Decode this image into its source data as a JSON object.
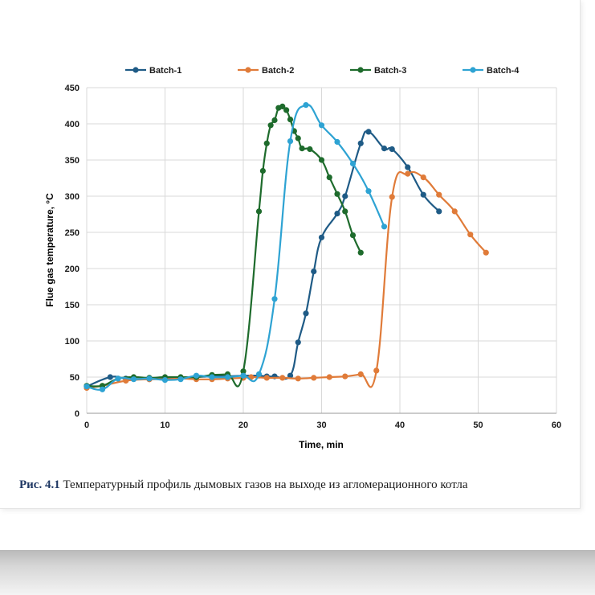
{
  "chart_data": {
    "type": "line",
    "title": "",
    "xlabel": "Time, min",
    "ylabel": "Flue gas temperature, °C",
    "xlim": [
      0,
      60
    ],
    "ylim": [
      0,
      450
    ],
    "xticks": [
      0,
      10,
      20,
      30,
      40,
      50,
      60
    ],
    "yticks": [
      0,
      50,
      100,
      150,
      200,
      250,
      300,
      350,
      400,
      450
    ],
    "grid": true,
    "legend_position": "top",
    "series": [
      {
        "name": "Batch-1",
        "color": "#1f5b86",
        "points": [
          [
            0,
            37
          ],
          [
            3,
            50
          ],
          [
            5,
            48
          ],
          [
            8,
            47
          ],
          [
            10,
            48
          ],
          [
            12,
            49
          ],
          [
            14,
            50
          ],
          [
            16,
            51
          ],
          [
            18,
            51
          ],
          [
            20,
            52
          ],
          [
            22,
            52
          ],
          [
            23,
            51
          ],
          [
            24,
            51
          ],
          [
            26,
            52
          ],
          [
            27,
            98
          ],
          [
            28,
            138
          ],
          [
            29,
            196
          ],
          [
            30,
            243
          ],
          [
            32,
            276
          ],
          [
            33,
            300
          ],
          [
            35,
            373
          ],
          [
            36,
            389
          ],
          [
            38,
            366
          ],
          [
            39,
            365
          ],
          [
            41,
            340
          ],
          [
            43,
            302
          ],
          [
            45,
            279
          ]
        ]
      },
      {
        "name": "Batch-2",
        "color": "#e07b39",
        "points": [
          [
            0,
            35
          ],
          [
            2,
            38
          ],
          [
            5,
            45
          ],
          [
            8,
            47
          ],
          [
            10,
            47
          ],
          [
            12,
            48
          ],
          [
            14,
            47
          ],
          [
            16,
            47
          ],
          [
            18,
            48
          ],
          [
            20,
            49
          ],
          [
            21,
            50
          ],
          [
            23,
            49
          ],
          [
            25,
            49
          ],
          [
            27,
            48
          ],
          [
            29,
            49
          ],
          [
            31,
            50
          ],
          [
            33,
            51
          ],
          [
            35,
            54
          ],
          [
            37,
            59
          ],
          [
            39,
            299
          ],
          [
            41,
            331
          ],
          [
            43,
            326
          ],
          [
            45,
            302
          ],
          [
            47,
            279
          ],
          [
            49,
            247
          ],
          [
            51,
            222
          ]
        ]
      },
      {
        "name": "Batch-3",
        "color": "#1e6b2c",
        "points": [
          [
            0,
            38
          ],
          [
            2,
            38
          ],
          [
            4,
            48
          ],
          [
            6,
            50
          ],
          [
            8,
            49
          ],
          [
            10,
            50
          ],
          [
            12,
            50
          ],
          [
            14,
            50
          ],
          [
            16,
            53
          ],
          [
            18,
            54
          ],
          [
            20,
            58
          ],
          [
            22,
            279
          ],
          [
            22.5,
            335
          ],
          [
            23,
            373
          ],
          [
            23.5,
            398
          ],
          [
            24,
            405
          ],
          [
            24.5,
            422
          ],
          [
            25,
            424
          ],
          [
            25.5,
            419
          ],
          [
            26,
            406
          ],
          [
            26.5,
            390
          ],
          [
            27,
            380
          ],
          [
            27.5,
            366
          ],
          [
            28.5,
            365
          ],
          [
            30,
            350
          ],
          [
            31,
            326
          ],
          [
            32,
            303
          ],
          [
            33,
            279
          ],
          [
            34,
            246
          ],
          [
            35,
            222
          ]
        ]
      },
      {
        "name": "Batch-4",
        "color": "#2ea3d3",
        "points": [
          [
            0,
            37
          ],
          [
            2,
            33
          ],
          [
            4,
            48
          ],
          [
            6,
            47
          ],
          [
            8,
            48
          ],
          [
            10,
            46
          ],
          [
            12,
            47
          ],
          [
            14,
            52
          ],
          [
            16,
            50
          ],
          [
            18,
            50
          ],
          [
            20,
            52
          ],
          [
            22,
            54
          ],
          [
            24,
            158
          ],
          [
            26,
            376
          ],
          [
            28,
            426
          ],
          [
            30,
            398
          ],
          [
            32,
            375
          ],
          [
            34,
            345
          ],
          [
            36,
            307
          ],
          [
            38,
            258
          ]
        ]
      }
    ]
  },
  "caption": {
    "figure_number": "Рис. 4.1",
    "text": "Температурный профиль дымовых газов на выходе из агломерационного котла"
  }
}
